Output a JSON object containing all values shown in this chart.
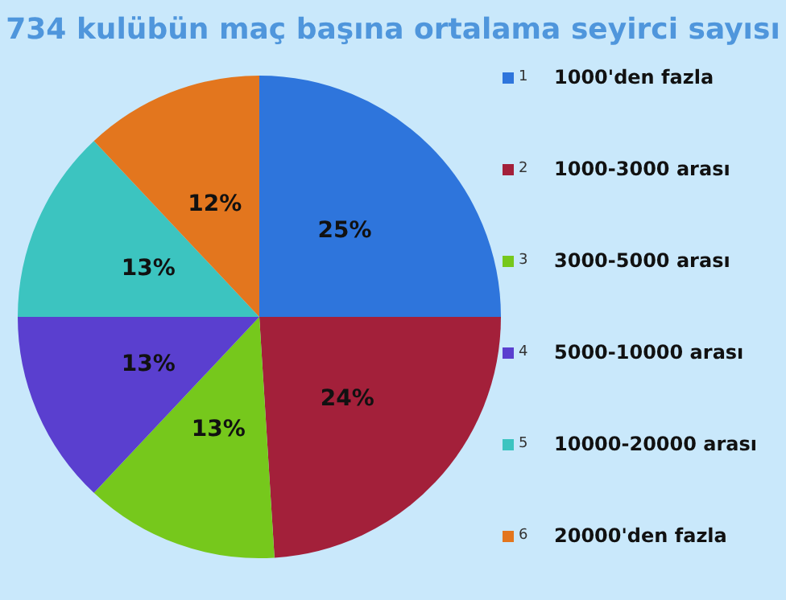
{
  "chart_data": {
    "type": "pie",
    "title": "734 kulübün maç başına ortalama seyirci sayısı",
    "categories": [
      "1000'den fazla",
      "1000-3000 arası",
      "3000-5000 arası",
      "5000-10000 arası",
      "10000-20000 arası",
      "20000'den fazla"
    ],
    "values": [
      25,
      24,
      13,
      13,
      13,
      12
    ],
    "value_labels": [
      "25%",
      "24%",
      "13%",
      "13%",
      "13%",
      "12%"
    ],
    "colors": [
      "#2e75dc",
      "#a3203a",
      "#76c81c",
      "#5a3fcf",
      "#3cc4c0",
      "#e3761e"
    ],
    "annotations": [
      "1",
      "2",
      "3",
      "4",
      "5",
      "6"
    ],
    "legend": "right"
  }
}
